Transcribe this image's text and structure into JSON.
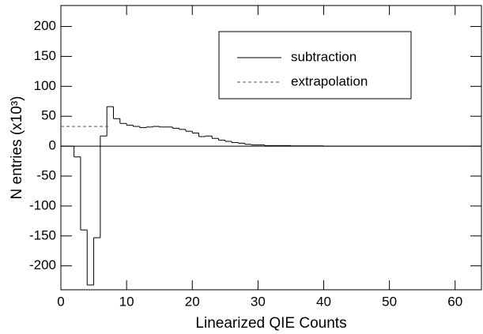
{
  "chart_data": {
    "type": "histogram",
    "xlabel": "Linearized QIE Counts",
    "ylabel": "N entries (x10³)",
    "xlim": [
      0,
      64
    ],
    "ylim": [
      -240,
      235
    ],
    "xticks": [
      0,
      10,
      20,
      30,
      40,
      50,
      60
    ],
    "yticks": [
      -200,
      -150,
      -100,
      -50,
      0,
      50,
      100,
      150,
      200
    ],
    "legend": "upper right",
    "series": [
      {
        "name": "subtraction",
        "color": "#000000",
        "style": "solid",
        "bins": [
          0,
          1,
          2,
          3,
          4,
          5,
          6,
          7,
          8,
          9,
          10,
          11,
          12,
          13,
          14,
          15,
          16,
          17,
          18,
          19,
          20,
          21,
          22,
          23,
          24,
          25,
          26,
          27,
          28,
          29,
          30,
          31,
          32,
          33,
          34,
          35,
          36,
          37,
          38,
          39,
          40,
          41,
          42,
          43,
          44,
          45,
          46,
          47,
          48,
          49,
          50,
          51,
          52,
          53,
          54,
          55,
          56,
          57,
          58,
          59,
          60,
          61,
          62,
          63,
          64
        ],
        "values": [
          0,
          0,
          -18,
          -140,
          -232,
          -153,
          17,
          66,
          46,
          38,
          35,
          33,
          31,
          32,
          33,
          32,
          32,
          30,
          28,
          25,
          22,
          16,
          17,
          13,
          10,
          8,
          6,
          5,
          3,
          2,
          2,
          1,
          1,
          1,
          1,
          0.5,
          0.5,
          0.5,
          0.5,
          0.5,
          0,
          0,
          0,
          0,
          0,
          0,
          0,
          0,
          0,
          0,
          0,
          0,
          0,
          0,
          0,
          0,
          0,
          0,
          0,
          0,
          0,
          0,
          0,
          0
        ]
      },
      {
        "name": "extrapolation",
        "color": "#555555",
        "style": "dashed",
        "x": [
          0,
          7.5
        ],
        "values": [
          33,
          33
        ]
      }
    ]
  }
}
